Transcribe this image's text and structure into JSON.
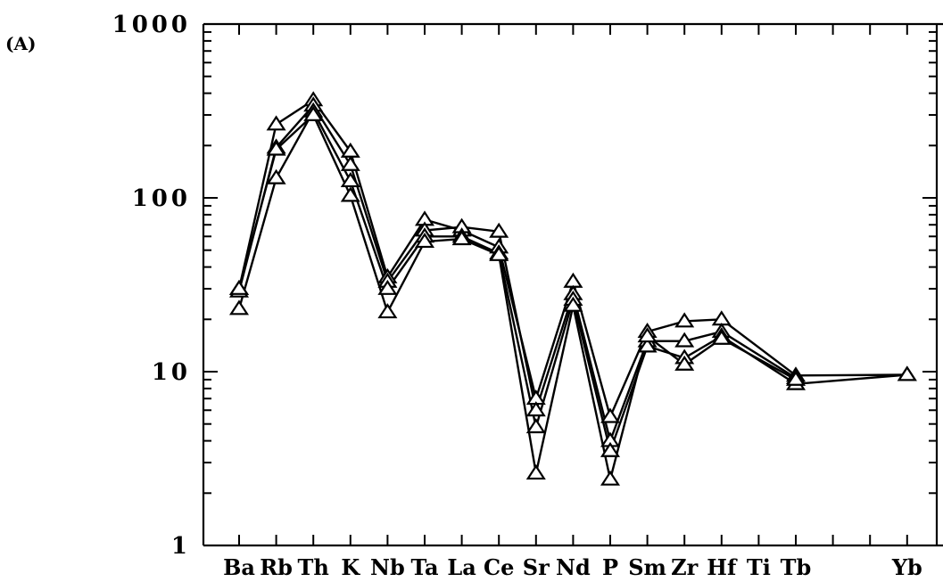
{
  "panel_label": "(A)",
  "chart_data": {
    "type": "line",
    "yscale": "log",
    "ylim": [
      1,
      1000
    ],
    "y_tick_labels": [
      "1000",
      "100",
      "10",
      "1"
    ],
    "categories": [
      "Ba",
      "Rb",
      "Th",
      "K",
      "Nb",
      "Ta",
      "La",
      "Ce",
      "Sr",
      "Nd",
      "P",
      "Sm",
      "Zr",
      "Hf",
      "Ti",
      "Tb",
      "",
      "",
      "Yb"
    ],
    "category_labels_text": [
      {
        "text": "Ba",
        "cat": 0
      },
      {
        "text": "Rb",
        "cat": 1
      },
      {
        "text": "Th",
        "cat": 2
      },
      {
        "text": "K",
        "cat": 3
      },
      {
        "text": "Nb",
        "cat": 4
      },
      {
        "text": "Ta",
        "cat": 5
      },
      {
        "text": "La",
        "cat": 6
      },
      {
        "text": "Ce",
        "cat": 7
      },
      {
        "text": "Sr",
        "cat": 8
      },
      {
        "text": "Nd",
        "cat": 9
      },
      {
        "text": "P",
        "cat": 10
      },
      {
        "text": "Sm",
        "cat": 11
      },
      {
        "text": "Zr",
        "cat": 12
      },
      {
        "text": "Hf",
        "cat": 13
      },
      {
        "text": "Ti",
        "cat": 14
      },
      {
        "text": "Tb",
        "cat": 15
      },
      {
        "text": "Yb",
        "cat": 18
      }
    ],
    "marker": "open-triangle",
    "series": [
      {
        "values": [
          30,
          265,
          365,
          185,
          35,
          75,
          65,
          52,
          7.0,
          33,
          5.5,
          17,
          19.5,
          20,
          null,
          9.5,
          null,
          null,
          9.6
        ]
      },
      {
        "values": [
          29,
          195,
          340,
          155,
          33,
          65,
          68,
          64,
          6.0,
          28,
          4.0,
          15,
          15,
          17,
          null,
          9.2,
          null,
          null,
          null
        ]
      },
      {
        "values": [
          23,
          130,
          315,
          125,
          30,
          60,
          60,
          48,
          4.8,
          26,
          3.5,
          14,
          12,
          16,
          null,
          8.5,
          null,
          null,
          9.6
        ]
      },
      {
        "values": [
          30,
          190,
          300,
          103,
          22,
          56,
          58,
          47,
          2.6,
          24,
          2.4,
          16,
          11,
          15.5,
          null,
          9.0,
          null,
          null,
          null
        ]
      }
    ]
  }
}
